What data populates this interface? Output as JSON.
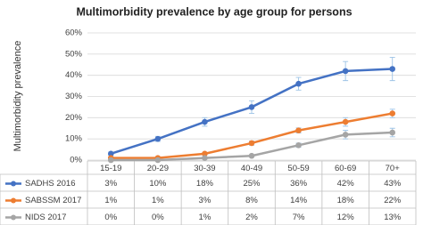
{
  "chart_data": {
    "type": "line",
    "title": "Multimorbidity prevalence by age group for persons",
    "y_label": "Multimorbidity prevalence",
    "categories": [
      "15-19",
      "20-29",
      "30-39",
      "40-49",
      "50-59",
      "60-69",
      "70+"
    ],
    "ylim": [
      0,
      60
    ],
    "yticks": [
      {
        "value": 0,
        "label": "0%"
      },
      {
        "value": 10,
        "label": "10%"
      },
      {
        "value": 20,
        "label": "20%"
      },
      {
        "value": 30,
        "label": "30%"
      },
      {
        "value": 40,
        "label": "40%"
      },
      {
        "value": 50,
        "label": "50%"
      },
      {
        "value": 60,
        "label": "60%"
      }
    ],
    "grid": true,
    "series": [
      {
        "name": "SADHS 2016",
        "color": "#4472c4",
        "values": [
          3,
          10,
          18,
          25,
          36,
          42,
          43
        ],
        "value_labels": [
          "3%",
          "10%",
          "18%",
          "25%",
          "36%",
          "42%",
          "43%"
        ],
        "errors": [
          0.8,
          1.2,
          2,
          3,
          3,
          4.5,
          5.5
        ]
      },
      {
        "name": "SABSSM 2017",
        "color": "#ed7d31",
        "values": [
          1,
          1,
          3,
          8,
          14,
          18,
          22
        ],
        "value_labels": [
          "1%",
          "1%",
          "3%",
          "8%",
          "14%",
          "18%",
          "22%"
        ],
        "errors": [
          0.4,
          0.4,
          0.6,
          1,
          1.2,
          2,
          2
        ]
      },
      {
        "name": "NIDS 2017",
        "color": "#a5a5a5",
        "values": [
          0,
          0,
          1,
          2,
          7,
          12,
          13
        ],
        "value_labels": [
          "0%",
          "0%",
          "1%",
          "2%",
          "7%",
          "12%",
          "13%"
        ],
        "errors": [
          0.2,
          0.2,
          0.4,
          0.5,
          1,
          2,
          2
        ]
      }
    ]
  }
}
